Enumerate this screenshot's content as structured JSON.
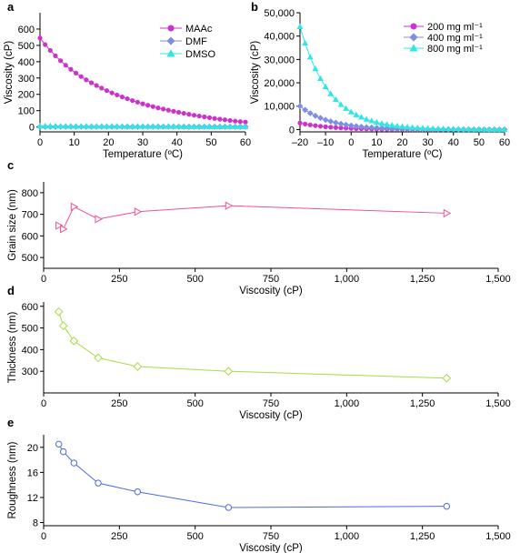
{
  "chart_data": [
    {
      "panel": "a",
      "type": "line",
      "xlabel": "Temperature (ºC)",
      "ylabel": "Viscosity (cP)",
      "xlim": [
        0,
        60
      ],
      "ylim": [
        -30,
        700
      ],
      "xticks": [
        0,
        10,
        20,
        30,
        40,
        50,
        60
      ],
      "yticks": [
        0,
        100,
        200,
        300,
        400,
        500,
        600
      ],
      "ytick_labels": [
        "0",
        "100",
        "200",
        "300",
        "400",
        "500",
        "600"
      ],
      "legend_position": "top-right",
      "series": [
        {
          "name": "MAAc",
          "color": "#cc33cc",
          "marker": "circle",
          "x": [
            0,
            1.5,
            3,
            4.5,
            6,
            7.5,
            9,
            10.5,
            12,
            13.5,
            15,
            16.5,
            18,
            19.5,
            21,
            22.5,
            24,
            25.5,
            27,
            28.5,
            30,
            31.5,
            33,
            34.5,
            36,
            37.5,
            39,
            40.5,
            42,
            43.5,
            45,
            46.5,
            48,
            49.5,
            51,
            52.5,
            54,
            55.5,
            57,
            58.5,
            60
          ],
          "y": [
            545,
            505,
            469,
            436,
            406,
            378,
            353,
            330,
            309,
            289,
            271,
            254,
            238,
            223,
            209,
            196,
            184,
            173,
            162,
            152,
            142,
            133,
            125,
            117,
            110,
            103,
            96,
            90,
            84,
            78,
            72,
            67,
            62,
            57,
            52,
            48,
            44,
            40,
            36,
            33,
            30
          ]
        },
        {
          "name": "DMF",
          "color": "#7f8fe0",
          "marker": "diamond",
          "x": [
            0,
            1.5,
            3,
            4.5,
            6,
            7.5,
            9,
            10.5,
            12,
            13.5,
            15,
            16.5,
            18,
            19.5,
            21,
            22.5,
            24,
            25.5,
            27,
            28.5,
            30,
            31.5,
            33,
            34.5,
            36,
            37.5,
            39,
            40.5,
            42,
            43.5,
            45,
            46.5,
            48,
            49.5,
            51,
            52.5,
            54,
            55.5,
            57,
            58.5,
            60
          ],
          "y": [
            2,
            2,
            2,
            2,
            2,
            2,
            2,
            2,
            2,
            2,
            2,
            2,
            2,
            2,
            2,
            2,
            2,
            2,
            2,
            2,
            2,
            2,
            2,
            2,
            2,
            2,
            2,
            2,
            2,
            2,
            2,
            2,
            2,
            2,
            2,
            2,
            2,
            2,
            2,
            2,
            2
          ]
        },
        {
          "name": "DMSO",
          "color": "#33e5e5",
          "marker": "triangle",
          "x": [
            0,
            1.5,
            3,
            4.5,
            6,
            7.5,
            9,
            10.5,
            12,
            13.5,
            15,
            16.5,
            18,
            19.5,
            21,
            22.5,
            24,
            25.5,
            27,
            28.5,
            30,
            31.5,
            33,
            34.5,
            36,
            37.5,
            39,
            40.5,
            42,
            43.5,
            45,
            46.5,
            48,
            49.5,
            51,
            52.5,
            54,
            55.5,
            57,
            58.5,
            60
          ],
          "y": [
            6,
            6,
            6,
            6,
            5,
            5,
            5,
            5,
            5,
            5,
            4,
            4,
            4,
            4,
            4,
            4,
            4,
            3,
            3,
            3,
            3,
            3,
            3,
            3,
            3,
            3,
            3,
            3,
            2,
            2,
            2,
            2,
            2,
            2,
            2,
            2,
            2,
            2,
            2,
            2,
            2
          ]
        }
      ]
    },
    {
      "panel": "b",
      "type": "line",
      "xlabel": "Temperature (ºC)",
      "ylabel": "Viscosity (cP)",
      "xlim": [
        -20,
        60
      ],
      "ylim": [
        -1000,
        50000
      ],
      "xticks": [
        -20,
        -10,
        0,
        10,
        20,
        30,
        40,
        50,
        60
      ],
      "xtick_labels": [
        "–20",
        "–10",
        "0",
        "10",
        "20",
        "30",
        "40",
        "50",
        "60"
      ],
      "yticks": [
        0,
        10000,
        20000,
        30000,
        40000,
        50000
      ],
      "ytick_labels": [
        "0",
        "10,000",
        "20,000",
        "30,000",
        "40,000",
        "50,000"
      ],
      "legend_position": "top-right",
      "series": [
        {
          "name": "200 mg ml⁻¹",
          "color": "#cc33cc",
          "marker": "circle",
          "x": [
            -20,
            -18,
            -16,
            -14,
            -12,
            -10,
            -8,
            -6,
            -4,
            -2,
            0,
            2,
            4,
            6,
            8,
            10,
            12,
            14,
            16,
            18,
            20,
            22,
            24,
            26,
            28,
            30,
            32,
            34,
            36,
            38,
            40,
            42,
            44,
            46,
            48,
            50,
            52,
            54,
            56,
            58,
            60
          ],
          "y": [
            2800,
            2350,
            1980,
            1670,
            1410,
            1190,
            1000,
            840,
            710,
            600,
            500,
            420,
            360,
            300,
            250,
            210,
            180,
            150,
            130,
            110,
            90,
            80,
            70,
            60,
            50,
            40,
            35,
            30,
            25,
            20,
            18,
            16,
            14,
            12,
            10,
            9,
            8,
            7,
            6,
            5,
            5
          ]
        },
        {
          "name": "400 mg ml⁻¹",
          "color": "#7f8fe0",
          "marker": "diamond",
          "x": [
            -20,
            -18,
            -16,
            -14,
            -12,
            -10,
            -8,
            -6,
            -4,
            -2,
            0,
            2,
            4,
            6,
            8,
            10,
            12,
            14,
            16,
            18,
            20,
            22,
            24,
            26,
            28,
            30,
            32,
            34,
            36,
            38,
            40,
            42,
            44,
            46,
            48,
            50,
            52,
            54,
            56,
            58,
            60
          ],
          "y": [
            10000,
            8400,
            7000,
            5900,
            4950,
            4150,
            3480,
            2920,
            2450,
            2050,
            1720,
            1440,
            1210,
            1010,
            850,
            710,
            600,
            500,
            420,
            350,
            300,
            250,
            210,
            180,
            150,
            125,
            105,
            90,
            75,
            63,
            53,
            45,
            38,
            32,
            27,
            23,
            19,
            16,
            14,
            12,
            10
          ]
        },
        {
          "name": "800 mg ml⁻¹",
          "color": "#33e5e5",
          "marker": "triangle",
          "x": [
            -20,
            -18,
            -16,
            -14,
            -12,
            -10,
            -8,
            -6,
            -4,
            -2,
            0,
            2,
            4,
            6,
            8,
            10,
            12,
            14,
            16,
            18,
            20,
            22,
            24,
            26,
            28,
            30,
            32,
            34,
            36,
            38,
            40,
            42,
            44,
            46,
            48,
            50,
            52,
            54,
            56,
            58,
            60
          ],
          "y": [
            44000,
            37000,
            31000,
            26000,
            21800,
            18300,
            15300,
            12800,
            10700,
            9000,
            7500,
            6300,
            5300,
            4400,
            3700,
            3100,
            2600,
            2180,
            1820,
            1520,
            1270,
            1060,
            890,
            740,
            620,
            520,
            440,
            370,
            310,
            260,
            220,
            190,
            160,
            140,
            120,
            100,
            90,
            80,
            70,
            60,
            50
          ]
        }
      ]
    },
    {
      "panel": "c",
      "type": "line",
      "xlabel": "Viscosity (cP)",
      "ylabel": "Grain size (nm)",
      "xlim": [
        0,
        1500
      ],
      "ylim": [
        450,
        850
      ],
      "xticks": [
        0,
        250,
        500,
        750,
        1000,
        1250,
        1500
      ],
      "xtick_labels": [
        "0",
        "250",
        "500",
        "750",
        "1,000",
        "1,250",
        "1,500"
      ],
      "yticks": [
        500,
        600,
        700,
        800
      ],
      "ytick_labels": [
        "500",
        "600",
        "700",
        "800"
      ],
      "series": [
        {
          "color": "#f0509a",
          "marker": "triangle-right",
          "x": [
            50,
            65,
            100,
            180,
            310,
            610,
            1330
          ],
          "y": [
            648,
            632,
            735,
            678,
            712,
            740,
            705
          ]
        }
      ]
    },
    {
      "panel": "d",
      "type": "line",
      "xlabel": "Viscosity (cP)",
      "ylabel": "Thickness (nm)",
      "xlim": [
        0,
        1500
      ],
      "ylim": [
        200,
        620
      ],
      "xticks": [
        0,
        250,
        500,
        750,
        1000,
        1250,
        1500
      ],
      "xtick_labels": [
        "0",
        "250",
        "500",
        "750",
        "1,000",
        "1,250",
        "1,500"
      ],
      "yticks": [
        300,
        400,
        500,
        600
      ],
      "ytick_labels": [
        "300",
        "400",
        "500",
        "600"
      ],
      "series": [
        {
          "color": "#a8d94a",
          "marker": "diamond",
          "x": [
            50,
            65,
            100,
            180,
            310,
            610,
            1330
          ],
          "y": [
            575,
            510,
            440,
            362,
            322,
            300,
            268
          ]
        }
      ]
    },
    {
      "panel": "e",
      "type": "line",
      "xlabel": "Viscosity (cP)",
      "ylabel": "Roughness (nm)",
      "xlim": [
        0,
        1500
      ],
      "ylim": [
        7.5,
        22
      ],
      "xticks": [
        0,
        250,
        500,
        750,
        1000,
        1250,
        1500
      ],
      "xtick_labels": [
        "0",
        "250",
        "500",
        "750",
        "1,000",
        "1,250",
        "1,500"
      ],
      "yticks": [
        8,
        12,
        16,
        20
      ],
      "ytick_labels": [
        "8",
        "12",
        "16",
        "20"
      ],
      "series": [
        {
          "color": "#4d6be0",
          "marker": "circle",
          "x": [
            50,
            65,
            100,
            180,
            310,
            610,
            1330
          ],
          "y": [
            20.5,
            19.3,
            17.5,
            14.3,
            12.9,
            10.4,
            10.6
          ]
        }
      ]
    }
  ]
}
